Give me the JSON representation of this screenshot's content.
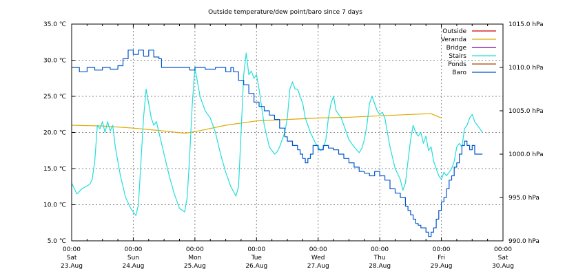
{
  "chart_data": {
    "type": "line",
    "title": "Outside temperature/dew point/baro since 7 days",
    "y_left": {
      "ylim": [
        5.0,
        35.0
      ],
      "ticks": [
        "5.0 ℃",
        "10.0 ℃",
        "15.0 ℃",
        "20.0 ℃",
        "25.0 ℃",
        "30.0 ℃",
        "35.0 ℃"
      ]
    },
    "y_right": {
      "ylim": [
        990.0,
        1015.0
      ],
      "ticks": [
        "990.0 hPa",
        "995.0 hPa",
        "1000.0 hPa",
        "1005.0 hPa",
        "1010.0 hPa",
        "1015.0 hPa"
      ]
    },
    "x_range_hours": [
      0,
      168
    ],
    "x_ticks": [
      {
        "time": "00:00",
        "day": "Sat",
        "date": "23.Aug"
      },
      {
        "time": "00:00",
        "day": "Sun",
        "date": "24.Aug"
      },
      {
        "time": "00:00",
        "day": "Mon",
        "date": "25.Aug"
      },
      {
        "time": "00:00",
        "day": "Tue",
        "date": "26.Aug"
      },
      {
        "time": "00:00",
        "day": "Wed",
        "date": "27.Aug"
      },
      {
        "time": "00:00",
        "day": "Thu",
        "date": "28.Aug"
      },
      {
        "time": "00:00",
        "day": "Fri",
        "date": "29.Aug"
      },
      {
        "time": "00:00",
        "day": "Sat",
        "date": "30.Aug"
      }
    ],
    "grid": true,
    "legend_position": "top-right",
    "series": [
      {
        "name": "Outside",
        "color": "#cc0000",
        "axis": "left",
        "points": []
      },
      {
        "name": "Veranda",
        "color": "#ddaa00",
        "axis": "left",
        "points": [
          [
            0,
            21.0
          ],
          [
            12,
            20.9
          ],
          [
            24,
            20.6
          ],
          [
            36,
            20.2
          ],
          [
            44,
            19.9
          ],
          [
            48,
            20.1
          ],
          [
            60,
            21.0
          ],
          [
            72,
            21.6
          ],
          [
            84,
            21.8
          ],
          [
            96,
            22.0
          ],
          [
            108,
            22.1
          ],
          [
            120,
            22.3
          ],
          [
            132,
            22.5
          ],
          [
            140,
            22.6
          ],
          [
            144,
            22.0
          ]
        ]
      },
      {
        "name": "Bridge",
        "color": "#7700aa",
        "axis": "left",
        "points": []
      },
      {
        "name": "Stairs",
        "color": "#22dddd",
        "axis": "left",
        "points": [
          [
            0,
            13.0
          ],
          [
            2,
            11.5
          ],
          [
            4,
            12.2
          ],
          [
            7,
            12.8
          ],
          [
            8,
            13.5
          ],
          [
            9,
            16
          ],
          [
            10,
            21
          ],
          [
            11,
            20.5
          ],
          [
            12,
            21.5
          ],
          [
            13,
            20
          ],
          [
            14,
            21.5
          ],
          [
            15,
            20.2
          ],
          [
            16,
            21
          ],
          [
            17,
            18
          ],
          [
            19,
            14
          ],
          [
            21,
            11
          ],
          [
            23,
            9.5
          ],
          [
            25,
            8.5
          ],
          [
            26,
            10
          ],
          [
            27,
            16
          ],
          [
            28,
            22
          ],
          [
            29,
            26
          ],
          [
            30,
            24
          ],
          [
            31,
            22
          ],
          [
            32,
            21
          ],
          [
            33,
            21.5
          ],
          [
            34,
            20
          ],
          [
            36,
            17
          ],
          [
            38,
            14
          ],
          [
            40,
            11.5
          ],
          [
            42,
            9.5
          ],
          [
            44,
            9
          ],
          [
            45,
            11
          ],
          [
            46,
            17
          ],
          [
            47,
            24
          ],
          [
            48,
            29
          ],
          [
            49,
            27
          ],
          [
            50,
            25
          ],
          [
            51,
            24
          ],
          [
            52,
            23
          ],
          [
            53,
            22.5
          ],
          [
            54,
            22
          ],
          [
            56,
            20
          ],
          [
            58,
            17
          ],
          [
            60,
            14.5
          ],
          [
            62,
            12.5
          ],
          [
            64,
            11.2
          ],
          [
            65,
            12.5
          ],
          [
            66,
            20
          ],
          [
            67,
            28
          ],
          [
            68,
            31
          ],
          [
            69,
            28
          ],
          [
            70,
            28.5
          ],
          [
            71,
            27.5
          ],
          [
            72,
            28
          ],
          [
            73,
            26
          ],
          [
            75,
            21
          ],
          [
            77,
            18
          ],
          [
            79,
            17
          ],
          [
            80,
            17.3
          ],
          [
            81,
            18
          ],
          [
            82,
            19
          ],
          [
            83,
            20
          ],
          [
            84,
            22
          ],
          [
            85,
            26
          ],
          [
            86,
            27
          ],
          [
            87,
            26
          ],
          [
            88,
            26
          ],
          [
            89,
            25
          ],
          [
            90,
            24
          ],
          [
            91,
            22
          ],
          [
            93,
            20
          ],
          [
            95,
            18.5
          ],
          [
            97,
            17.5
          ],
          [
            98,
            17.8
          ],
          [
            99,
            19
          ],
          [
            100,
            22
          ],
          [
            101,
            24
          ],
          [
            102,
            25
          ],
          [
            103,
            23
          ],
          [
            104,
            22.5
          ],
          [
            105,
            22
          ],
          [
            106,
            21
          ],
          [
            108,
            19
          ],
          [
            110,
            18
          ],
          [
            112,
            17.2
          ],
          [
            113,
            17.8
          ],
          [
            114,
            19
          ],
          [
            115,
            21
          ],
          [
            116,
            24
          ],
          [
            117,
            25
          ],
          [
            118,
            24
          ],
          [
            119,
            23
          ],
          [
            120,
            22.5
          ],
          [
            121,
            22.8
          ],
          [
            122,
            22
          ],
          [
            124,
            18
          ],
          [
            126,
            15
          ],
          [
            128,
            13.5
          ],
          [
            129,
            12
          ],
          [
            130,
            13
          ],
          [
            131,
            16
          ],
          [
            132,
            19
          ],
          [
            133,
            21
          ],
          [
            134,
            20
          ],
          [
            135,
            19.5
          ],
          [
            136,
            20
          ],
          [
            137,
            18.5
          ],
          [
            138,
            19.5
          ],
          [
            139,
            17.5
          ],
          [
            140,
            18
          ],
          [
            141,
            16
          ],
          [
            142,
            15
          ],
          [
            143,
            14
          ],
          [
            144,
            13.5
          ],
          [
            145,
            14.5
          ],
          [
            146,
            14
          ],
          [
            147,
            14.5
          ],
          [
            148,
            15
          ],
          [
            149,
            16
          ],
          [
            150,
            18
          ],
          [
            151,
            18.5
          ],
          [
            152,
            18
          ],
          [
            153,
            20.5
          ],
          [
            154,
            21
          ],
          [
            155,
            22
          ],
          [
            156,
            22.5
          ],
          [
            157,
            21.5
          ],
          [
            158,
            21
          ],
          [
            159,
            20.5
          ],
          [
            160,
            20
          ]
        ]
      },
      {
        "name": "Ponds",
        "color": "#aa4400",
        "axis": "left",
        "points": []
      },
      {
        "name": "Baro",
        "color": "#0055cc",
        "axis": "right",
        "points": [
          [
            0,
            1010.0
          ],
          [
            3,
            1009.5
          ],
          [
            6,
            1010.0
          ],
          [
            9,
            1009.7
          ],
          [
            12,
            1010.0
          ],
          [
            15,
            1009.8
          ],
          [
            18,
            1010.2
          ],
          [
            20,
            1011.0
          ],
          [
            22,
            1012.0
          ],
          [
            24,
            1011.5
          ],
          [
            26,
            1012.0
          ],
          [
            28,
            1011.3
          ],
          [
            30,
            1012.0
          ],
          [
            32,
            1011.2
          ],
          [
            34,
            1011.0
          ],
          [
            35,
            1010.0
          ],
          [
            38,
            1010.0
          ],
          [
            42,
            1010.0
          ],
          [
            46,
            1009.7
          ],
          [
            48,
            1010.0
          ],
          [
            52,
            1009.8
          ],
          [
            56,
            1010.0
          ],
          [
            60,
            1009.5
          ],
          [
            62,
            1010.0
          ],
          [
            63,
            1009.5
          ],
          [
            65,
            1008.5
          ],
          [
            67,
            1008.0
          ],
          [
            69,
            1007.0
          ],
          [
            71,
            1006.0
          ],
          [
            73,
            1005.5
          ],
          [
            75,
            1005.0
          ],
          [
            77,
            1004.5
          ],
          [
            79,
            1004.0
          ],
          [
            81,
            1003.0
          ],
          [
            83,
            1002.0
          ],
          [
            84,
            1001.5
          ],
          [
            86,
            1001.0
          ],
          [
            88,
            1000.5
          ],
          [
            89,
            1000.0
          ],
          [
            90,
            999.5
          ],
          [
            91,
            999.0
          ],
          [
            92,
            999.5
          ],
          [
            93,
            1000.0
          ],
          [
            94,
            1001.0
          ],
          [
            96,
            1000.5
          ],
          [
            98,
            1001.0
          ],
          [
            100,
            1000.7
          ],
          [
            102,
            1000.5
          ],
          [
            104,
            1000.0
          ],
          [
            106,
            999.5
          ],
          [
            108,
            999.0
          ],
          [
            110,
            998.5
          ],
          [
            112,
            998.0
          ],
          [
            114,
            997.8
          ],
          [
            116,
            997.5
          ],
          [
            118,
            998.0
          ],
          [
            120,
            997.5
          ],
          [
            122,
            997.0
          ],
          [
            124,
            996.0
          ],
          [
            126,
            995.5
          ],
          [
            128,
            995.0
          ],
          [
            130,
            994.0
          ],
          [
            131,
            993.5
          ],
          [
            132,
            993.0
          ],
          [
            133,
            992.5
          ],
          [
            134,
            992.0
          ],
          [
            135,
            991.8
          ],
          [
            136,
            991.5
          ],
          [
            137,
            991.5
          ],
          [
            138,
            991.0
          ],
          [
            139,
            990.5
          ],
          [
            140,
            991.0
          ],
          [
            141,
            991.5
          ],
          [
            142,
            992.5
          ],
          [
            143,
            993.5
          ],
          [
            144,
            994.5
          ],
          [
            145,
            995.0
          ],
          [
            146,
            996.0
          ],
          [
            147,
            997.0
          ],
          [
            148,
            997.5
          ],
          [
            149,
            998.5
          ],
          [
            150,
            999.0
          ],
          [
            151,
            1000.0
          ],
          [
            152,
            1001.0
          ],
          [
            153,
            1001.5
          ],
          [
            154,
            1001.0
          ],
          [
            155,
            1000.5
          ],
          [
            156,
            1001.0
          ],
          [
            157,
            1000.0
          ],
          [
            158,
            1000.0
          ],
          [
            159,
            1000.0
          ],
          [
            160,
            1000.0
          ]
        ]
      }
    ]
  }
}
